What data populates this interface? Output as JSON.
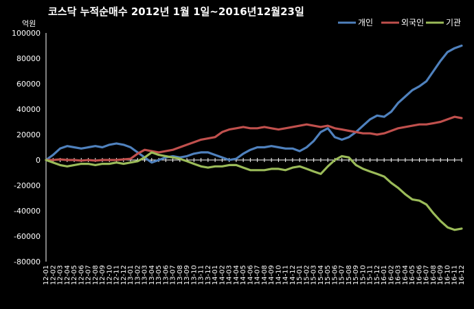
{
  "chart_data": {
    "type": "line",
    "title": "코스닥 누적순매수 2012년 1월 1일~2016년12월23일",
    "ylabel": "억원",
    "xlabel": "",
    "ylim": [
      -80000,
      100000
    ],
    "yticks": [
      100000,
      80000,
      60000,
      40000,
      20000,
      0,
      -20000,
      -40000,
      -60000,
      -80000
    ],
    "grid": false,
    "legend": "top-right",
    "categories": [
      "12-01",
      "12-02",
      "12-03",
      "12-04",
      "12-05",
      "12-06",
      "12-07",
      "12-08",
      "12-09",
      "12-10",
      "12-11",
      "12-12",
      "13-01",
      "13-02",
      "13-03",
      "13-04",
      "13-05",
      "13-06",
      "13-07",
      "13-08",
      "13-09",
      "13-10",
      "13-11",
      "13-12",
      "14-01",
      "14-02",
      "14-03",
      "14-04",
      "14-05",
      "14-06",
      "14-07",
      "14-08",
      "14-09",
      "14-10",
      "14-11",
      "14-12",
      "15-01",
      "15-02",
      "15-03",
      "15-04",
      "15-05",
      "15-06",
      "15-07",
      "15-08",
      "15-09",
      "15-10",
      "15-11",
      "15-12",
      "16-01",
      "16-02",
      "16-03",
      "16-04",
      "16-05",
      "16-06",
      "16-07",
      "16-08",
      "16-09",
      "16-10",
      "16-11",
      "16-12"
    ],
    "series": [
      {
        "name": "개인",
        "color": "#4f81bd",
        "values": [
          0,
          4000,
          9000,
          11000,
          10000,
          9000,
          10000,
          11000,
          10000,
          12000,
          13000,
          12000,
          10000,
          6000,
          2000,
          -2000,
          0,
          2000,
          3000,
          2000,
          3000,
          5000,
          6000,
          6000,
          4000,
          2000,
          0,
          1000,
          5000,
          8000,
          10000,
          10000,
          11000,
          10000,
          9000,
          9000,
          7000,
          10000,
          15000,
          22000,
          25000,
          18000,
          16000,
          18000,
          22000,
          27000,
          32000,
          35000,
          34000,
          38000,
          45000,
          50000,
          55000,
          58000,
          62000,
          70000,
          78000,
          85000,
          88000,
          90000
        ]
      },
      {
        "name": "외국인",
        "color": "#c0504d",
        "values": [
          0,
          0,
          500,
          0,
          0,
          -500,
          0,
          -500,
          0,
          0,
          0,
          500,
          1000,
          5000,
          8000,
          7000,
          6000,
          7000,
          8000,
          10000,
          12000,
          14000,
          16000,
          17000,
          18000,
          22000,
          24000,
          25000,
          26000,
          25000,
          25000,
          26000,
          25000,
          24000,
          25000,
          26000,
          27000,
          28000,
          27000,
          26000,
          27000,
          25000,
          24000,
          23000,
          22000,
          21000,
          21000,
          20000,
          21000,
          23000,
          25000,
          26000,
          27000,
          28000,
          28000,
          29000,
          30000,
          32000,
          34000,
          33000
        ]
      },
      {
        "name": "기관",
        "color": "#9bbb59",
        "values": [
          0,
          -2000,
          -4000,
          -5000,
          -4000,
          -3000,
          -3000,
          -4000,
          -3000,
          -3000,
          -2000,
          -3000,
          -2000,
          -1000,
          2000,
          6000,
          4000,
          3000,
          2000,
          1000,
          -1000,
          -3000,
          -5000,
          -6000,
          -5000,
          -5000,
          -4000,
          -4000,
          -6000,
          -8000,
          -8000,
          -8000,
          -7000,
          -7000,
          -8000,
          -6000,
          -5000,
          -7000,
          -9000,
          -11000,
          -5000,
          0,
          3000,
          2000,
          -4000,
          -7000,
          -9000,
          -11000,
          -13000,
          -18000,
          -22000,
          -27000,
          -31000,
          -32000,
          -35000,
          -42000,
          -48000,
          -53000,
          -55000,
          -54000
        ]
      }
    ]
  }
}
